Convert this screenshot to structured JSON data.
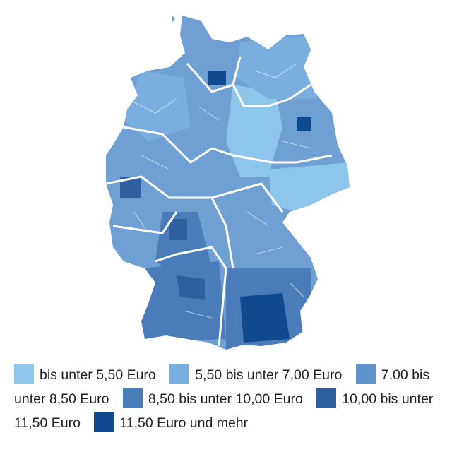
{
  "legend": {
    "items": [
      {
        "label": "bis unter 5,50 Euro",
        "color": "#8ec5ea"
      },
      {
        "label": "5,50 bis unter 7,00 Euro",
        "color": "#7aaede"
      },
      {
        "label": "7,00 bis unter 8,50 Euro",
        "color": "#5f93cc"
      },
      {
        "label": "8,50 bis unter 10,00 Euro",
        "color": "#4a7cba"
      },
      {
        "label": "10,00 bis unter 11,50 Euro",
        "color": "#2f5f9e"
      },
      {
        "label": "11,50 Euro und mehr",
        "color": "#0f4a8f"
      }
    ]
  }
}
